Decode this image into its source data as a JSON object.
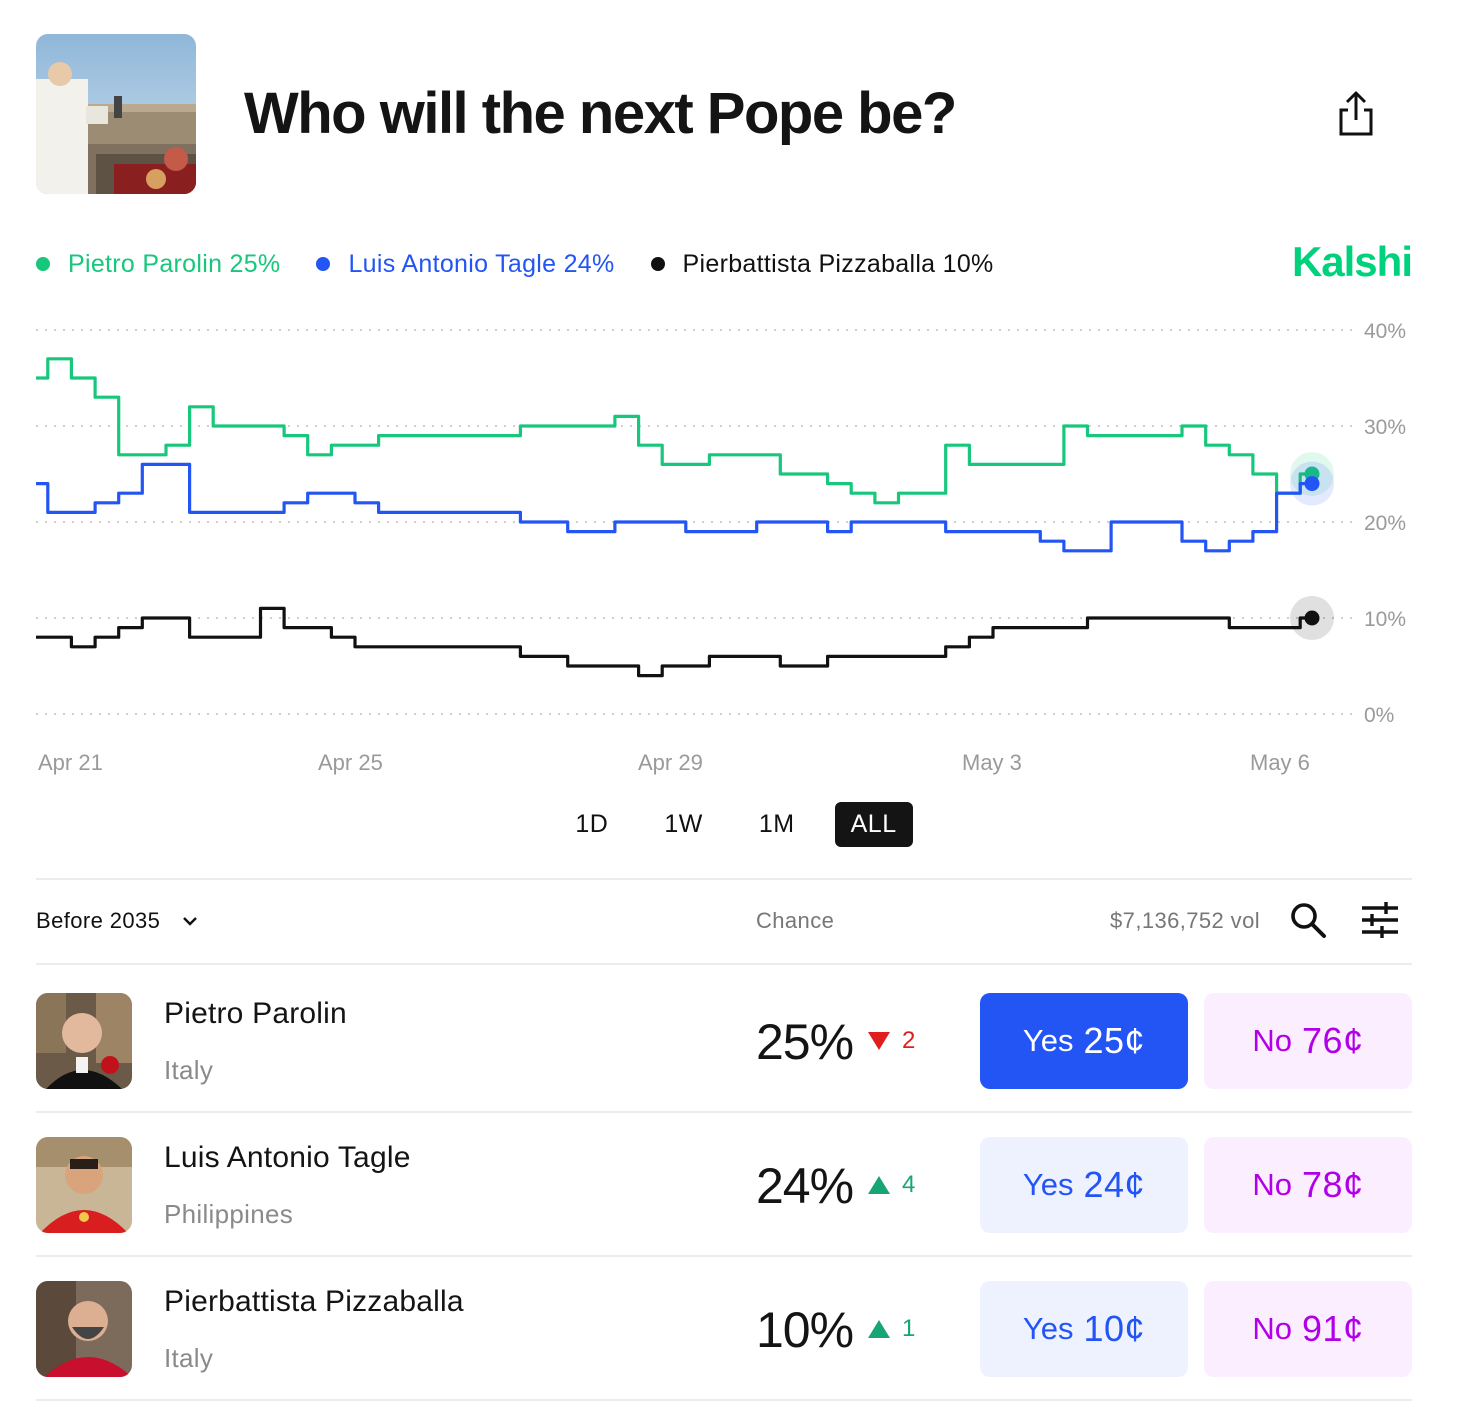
{
  "header": {
    "title": "Who will the next Pope be?",
    "hero_image": "pope-balcony-image",
    "share_icon": "share-icon"
  },
  "brand": {
    "name": "Kalshi",
    "color": "#00d17d"
  },
  "legend": [
    {
      "label": "Pietro Parolin 25%",
      "color": "#17c77b"
    },
    {
      "label": "Luis Antonio Tagle 24%",
      "color": "#2355f5"
    },
    {
      "label": "Pierbattista Pizzaballa 10%",
      "color": "#111111"
    }
  ],
  "chart_data": {
    "type": "line",
    "x_labels": [
      "Apr 21",
      "Apr 25",
      "Apr 29",
      "May 3",
      "May 6"
    ],
    "y_ticks": [
      "40%",
      "30%",
      "20%",
      "10%",
      "0%"
    ],
    "ylim": [
      0,
      40
    ],
    "grid": true,
    "series": [
      {
        "name": "Pietro Parolin",
        "color": "#17c77b",
        "values": [
          35,
          37,
          35,
          33,
          27,
          27,
          28,
          32,
          30,
          30,
          30,
          29,
          27,
          28,
          28,
          29,
          29,
          29,
          29,
          29,
          29,
          30,
          30,
          30,
          30,
          31,
          28,
          26,
          26,
          27,
          27,
          27,
          25,
          25,
          24,
          23,
          22,
          23,
          23,
          28,
          26,
          26,
          26,
          26,
          30,
          29,
          29,
          29,
          29,
          30,
          28,
          27,
          25,
          23,
          25
        ]
      },
      {
        "name": "Luis Antonio Tagle",
        "color": "#2355f5",
        "values": [
          24,
          21,
          21,
          22,
          23,
          26,
          26,
          21,
          21,
          21,
          21,
          22,
          23,
          23,
          22,
          21,
          21,
          21,
          21,
          21,
          21,
          20,
          20,
          19,
          19,
          20,
          20,
          20,
          19,
          19,
          19,
          20,
          20,
          20,
          19,
          20,
          20,
          20,
          20,
          19,
          19,
          19,
          19,
          18,
          17,
          17,
          20,
          20,
          20,
          18,
          17,
          18,
          19,
          23,
          24
        ]
      },
      {
        "name": "Pierbattista Pizzaballa",
        "color": "#111111",
        "values": [
          8,
          8,
          7,
          8,
          9,
          10,
          10,
          8,
          8,
          8,
          11,
          9,
          9,
          8,
          7,
          7,
          7,
          7,
          7,
          7,
          7,
          6,
          6,
          5,
          5,
          5,
          4,
          5,
          5,
          6,
          6,
          6,
          5,
          5,
          6,
          6,
          6,
          6,
          6,
          7,
          8,
          9,
          9,
          9,
          9,
          10,
          10,
          10,
          10,
          10,
          10,
          9,
          9,
          9,
          10
        ]
      }
    ]
  },
  "ranges": [
    "1D",
    "1W",
    "1M",
    "ALL"
  ],
  "active_range": "ALL",
  "table": {
    "period_label": "Before 2035",
    "chance_header": "Chance",
    "volume": "$7,136,752 vol",
    "rows": [
      {
        "name": "Pietro Parolin",
        "country": "Italy",
        "chance": "25%",
        "delta": "2",
        "direction": "down",
        "yes_label": "Yes",
        "yes_price": "25¢",
        "no_label": "No",
        "no_price": "76¢",
        "yes_active": true
      },
      {
        "name": "Luis Antonio Tagle",
        "country": "Philippines",
        "chance": "24%",
        "delta": "4",
        "direction": "up",
        "yes_label": "Yes",
        "yes_price": "24¢",
        "no_label": "No",
        "no_price": "78¢",
        "yes_active": false
      },
      {
        "name": "Pierbattista Pizzaballa",
        "country": "Italy",
        "chance": "10%",
        "delta": "1",
        "direction": "up",
        "yes_label": "Yes",
        "yes_price": "10¢",
        "no_label": "No",
        "no_price": "91¢",
        "yes_active": false
      }
    ]
  },
  "colors": {
    "up": "#17a673",
    "down": "#e01e1e",
    "yes_active_bg": "#2355f5",
    "yes_bg": "#eef2fe",
    "yes_text": "#2355f5",
    "no_bg": "#fbeefe",
    "no_text": "#b100e8",
    "axis_text": "#9a9a9a"
  }
}
